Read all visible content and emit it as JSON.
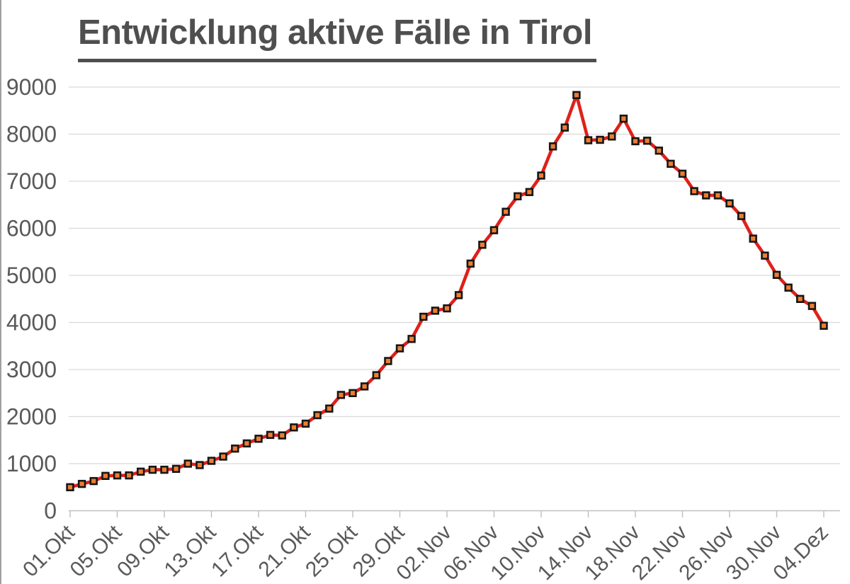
{
  "title": "Entwicklung aktive Fälle in Tirol",
  "chart_data": {
    "type": "line",
    "title": "Entwicklung aktive Fälle in Tirol",
    "xlabel": "",
    "ylabel": "",
    "ylim": [
      0,
      9000
    ],
    "y_tick_step": 1000,
    "y_tick_labels": [
      "0",
      "1000",
      "2000",
      "3000",
      "4000",
      "5000",
      "6000",
      "7000",
      "8000",
      "9000"
    ],
    "x_tick_labels": [
      "01.Okt",
      "05.Okt",
      "09.Okt",
      "13.Okt",
      "17.Okt",
      "21.Okt",
      "25.Okt",
      "29.Okt",
      "02.Nov",
      "06.Nov",
      "10.Nov",
      "14.Nov",
      "18.Nov",
      "22.Nov",
      "26.Nov",
      "30.Nov",
      "04.Dez"
    ],
    "x_tick_interval": 4,
    "grid": true,
    "legend": "none",
    "x": [
      "01.Okt",
      "02.Okt",
      "03.Okt",
      "04.Okt",
      "05.Okt",
      "06.Okt",
      "07.Okt",
      "08.Okt",
      "09.Okt",
      "10.Okt",
      "11.Okt",
      "12.Okt",
      "13.Okt",
      "14.Okt",
      "15.Okt",
      "16.Okt",
      "17.Okt",
      "18.Okt",
      "19.Okt",
      "20.Okt",
      "21.Okt",
      "22.Okt",
      "23.Okt",
      "24.Okt",
      "25.Okt",
      "26.Okt",
      "27.Okt",
      "28.Okt",
      "29.Okt",
      "30.Okt",
      "31.Okt",
      "01.Nov",
      "02.Nov",
      "03.Nov",
      "04.Nov",
      "05.Nov",
      "06.Nov",
      "07.Nov",
      "08.Nov",
      "09.Nov",
      "10.Nov",
      "11.Nov",
      "12.Nov",
      "13.Nov",
      "14.Nov",
      "15.Nov",
      "16.Nov",
      "17.Nov",
      "18.Nov",
      "19.Nov",
      "20.Nov",
      "21.Nov",
      "22.Nov",
      "23.Nov",
      "24.Nov",
      "25.Nov",
      "26.Nov",
      "27.Nov",
      "28.Nov",
      "29.Nov",
      "30.Nov",
      "01.Dez",
      "02.Dez",
      "03.Dez",
      "04.Dez"
    ],
    "values": [
      500,
      570,
      630,
      740,
      750,
      750,
      830,
      870,
      870,
      890,
      1000,
      970,
      1060,
      1150,
      1320,
      1430,
      1530,
      1610,
      1600,
      1770,
      1850,
      2030,
      2170,
      2460,
      2500,
      2640,
      2880,
      3180,
      3450,
      3650,
      4120,
      4250,
      4300,
      4580,
      5250,
      5650,
      5960,
      6350,
      6680,
      6770,
      7120,
      7740,
      8140,
      8830,
      7870,
      7880,
      7950,
      8330,
      7850,
      7860,
      7650,
      7370,
      7160,
      6790,
      6700,
      6700,
      6530,
      6260,
      5780,
      5420,
      5010,
      4740,
      4500,
      4350,
      3930
    ],
    "colors": {
      "line": "#e0201a",
      "marker_fill": "#ed7d31",
      "marker_border": "#161616",
      "gridline": "#d9d9d9",
      "axis_line": "#bfbfbf",
      "tick": "#bfbfbf",
      "label_text": "#595959",
      "title_text": "#4f4f4f",
      "background": "#ffffff"
    }
  }
}
